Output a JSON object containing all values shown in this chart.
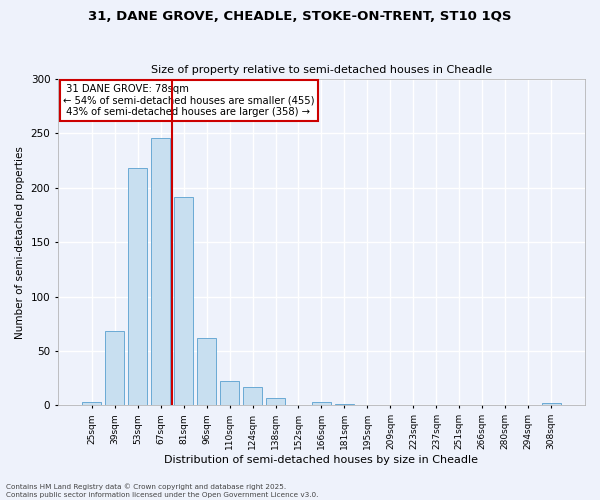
{
  "title": "31, DANE GROVE, CHEADLE, STOKE-ON-TRENT, ST10 1QS",
  "subtitle": "Size of property relative to semi-detached houses in Cheadle",
  "xlabel": "Distribution of semi-detached houses by size in Cheadle",
  "ylabel": "Number of semi-detached properties",
  "categories": [
    "25sqm",
    "39sqm",
    "53sqm",
    "67sqm",
    "81sqm",
    "96sqm",
    "110sqm",
    "124sqm",
    "138sqm",
    "152sqm",
    "166sqm",
    "181sqm",
    "195sqm",
    "209sqm",
    "223sqm",
    "237sqm",
    "251sqm",
    "266sqm",
    "280sqm",
    "294sqm",
    "308sqm"
  ],
  "values": [
    3,
    68,
    218,
    246,
    192,
    62,
    22,
    17,
    7,
    0,
    3,
    1,
    0,
    0,
    0,
    0,
    0,
    0,
    0,
    0,
    2
  ],
  "bar_color": "#c8dff0",
  "bar_edge_color": "#6aaad4",
  "property_line_index": 3.5,
  "property_sqm": 78,
  "property_label": "31 DANE GROVE: 78sqm",
  "smaller_pct": 54,
  "smaller_count": 455,
  "larger_pct": 43,
  "larger_count": 358,
  "annotation_box_color": "#cc0000",
  "line_color": "#cc0000",
  "ylim": [
    0,
    300
  ],
  "yticks": [
    0,
    50,
    100,
    150,
    200,
    250,
    300
  ],
  "background_color": "#eef2fb",
  "grid_color": "#ffffff",
  "footer1": "Contains HM Land Registry data © Crown copyright and database right 2025.",
  "footer2": "Contains public sector information licensed under the Open Government Licence v3.0."
}
